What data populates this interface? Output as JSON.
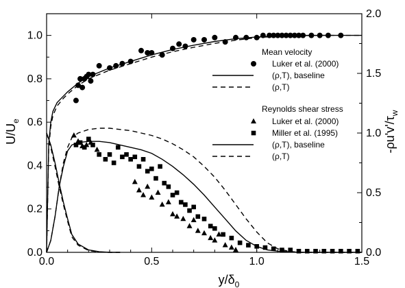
{
  "chart_data": {
    "type": "scatter",
    "xlabel": "y/δ",
    "xlabel_sub": "0",
    "ylabel_left": "U/U",
    "ylabel_left_sub": "e",
    "ylabel_right": "-ρu'v'/τ",
    "ylabel_right_sub": "w",
    "xlim": [
      0,
      1.5
    ],
    "ylim_left": [
      0,
      1.1
    ],
    "ylim_right": [
      0,
      2.0
    ],
    "xticks": [
      "0.0",
      "0.5",
      "1.0",
      "1.5"
    ],
    "yticks_left": [
      "0.0",
      "0.2",
      "0.4",
      "0.6",
      "0.8",
      "1.0"
    ],
    "yticks_right": [
      "0.0",
      "0.5",
      "1.0",
      "1.5",
      "2.0"
    ],
    "legend": {
      "velocity_title": "Mean velocity",
      "velocity_entries": [
        "Luker et al. (2000)",
        "(ρ,T), baseline",
        "(ρ,T)"
      ],
      "stress_title": "Reynolds shear stress",
      "stress_entries": [
        "Luker et al. (2000)",
        "Miller et al. (1995)",
        "(ρ,T), baseline",
        "(ρ,T)"
      ]
    },
    "series": [
      {
        "name": "Luker et al. (2000)",
        "group": "velocity",
        "kind": "scatter",
        "marker": "circle",
        "axis": "left",
        "x": [
          0.14,
          0.15,
          0.16,
          0.17,
          0.18,
          0.19,
          0.2,
          0.21,
          0.22,
          0.25,
          0.3,
          0.33,
          0.36,
          0.4,
          0.45,
          0.48,
          0.5,
          0.55,
          0.6,
          0.63,
          0.66,
          0.7,
          0.75,
          0.8,
          0.85,
          0.9,
          0.95,
          1.0,
          1.03,
          1.06,
          1.08,
          1.1,
          1.12,
          1.14,
          1.16,
          1.18,
          1.2,
          1.22,
          1.26,
          1.3,
          1.34,
          1.4
        ],
        "y": [
          0.7,
          0.77,
          0.8,
          0.76,
          0.8,
          0.81,
          0.82,
          0.79,
          0.82,
          0.86,
          0.85,
          0.86,
          0.87,
          0.88,
          0.93,
          0.92,
          0.92,
          0.91,
          0.94,
          0.96,
          0.95,
          0.98,
          0.98,
          0.99,
          0.97,
          0.99,
          0.99,
          0.99,
          1.0,
          1.0,
          1.0,
          1.0,
          1.0,
          1.0,
          1.0,
          1.0,
          1.0,
          1.0,
          1.0,
          1.0,
          1.0,
          1.0
        ]
      },
      {
        "name": "(ρ,T), baseline",
        "group": "velocity",
        "kind": "line",
        "dash": "solid",
        "axis": "left",
        "x": [
          0,
          0.01,
          0.02,
          0.03,
          0.05,
          0.08,
          0.1,
          0.15,
          0.2,
          0.3,
          0.4,
          0.5,
          0.6,
          0.7,
          0.8,
          0.9,
          1.0,
          1.1,
          1.2,
          1.3,
          1.4,
          1.5
        ],
        "y": [
          0,
          0.5,
          0.6,
          0.65,
          0.69,
          0.72,
          0.74,
          0.78,
          0.81,
          0.85,
          0.88,
          0.91,
          0.935,
          0.955,
          0.972,
          0.985,
          0.993,
          0.998,
          1.0,
          1.0,
          1.0,
          1.0
        ]
      },
      {
        "name": "(ρ,T)",
        "group": "velocity",
        "kind": "line",
        "dash": "dashed",
        "axis": "left",
        "x": [
          0,
          0.01,
          0.02,
          0.03,
          0.05,
          0.08,
          0.1,
          0.15,
          0.2,
          0.3,
          0.4,
          0.5,
          0.6,
          0.7,
          0.8,
          0.9,
          1.0,
          1.1,
          1.2,
          1.3,
          1.4,
          1.5
        ],
        "y": [
          0,
          0.48,
          0.58,
          0.63,
          0.675,
          0.71,
          0.73,
          0.77,
          0.8,
          0.84,
          0.87,
          0.9,
          0.925,
          0.945,
          0.963,
          0.978,
          0.99,
          0.996,
          0.999,
          1.0,
          1.0,
          1.0
        ]
      },
      {
        "name": "Luker et al. (2000)",
        "group": "stress",
        "kind": "scatter",
        "marker": "triangle",
        "axis": "right",
        "x": [
          0.13,
          0.15,
          0.17,
          0.19,
          0.21,
          0.24,
          0.42,
          0.44,
          0.46,
          0.48,
          0.5,
          0.53,
          0.55,
          0.58,
          0.6,
          0.62,
          0.65,
          0.68,
          0.7,
          0.72,
          0.75,
          0.78,
          0.8,
          0.82,
          0.85,
          0.88,
          0.9
        ],
        "y": [
          0.98,
          0.93,
          0.89,
          0.9,
          0.92,
          0.86,
          0.59,
          0.52,
          0.48,
          0.55,
          0.46,
          0.5,
          0.4,
          0.42,
          0.32,
          0.3,
          0.28,
          0.22,
          0.27,
          0.18,
          0.16,
          0.12,
          0.1,
          0.15,
          0.06,
          0.04,
          0.02
        ]
      },
      {
        "name": "Miller et al. (1995)",
        "group": "stress",
        "kind": "scatter",
        "marker": "square",
        "axis": "right",
        "x": [
          0.14,
          0.16,
          0.18,
          0.2,
          0.22,
          0.25,
          0.28,
          0.3,
          0.32,
          0.34,
          0.36,
          0.38,
          0.4,
          0.42,
          0.44,
          0.46,
          0.48,
          0.5,
          0.52,
          0.54,
          0.56,
          0.58,
          0.6,
          0.62,
          0.64,
          0.66,
          0.68,
          0.7,
          0.72,
          0.75,
          0.78,
          0.8,
          0.84,
          0.88,
          0.92,
          0.96,
          1.0,
          1.04,
          1.08,
          1.12,
          1.16,
          1.2,
          1.24,
          1.28,
          1.32,
          1.36,
          1.4,
          1.44,
          1.48
        ],
        "y": [
          0.9,
          0.92,
          0.88,
          0.95,
          0.9,
          0.82,
          0.78,
          0.82,
          0.75,
          0.88,
          0.8,
          0.82,
          0.78,
          0.8,
          0.72,
          0.78,
          0.68,
          0.7,
          0.62,
          0.72,
          0.58,
          0.55,
          0.48,
          0.5,
          0.42,
          0.4,
          0.35,
          0.38,
          0.3,
          0.28,
          0.22,
          0.2,
          0.15,
          0.12,
          0.08,
          0.06,
          0.05,
          0.04,
          0.03,
          0.02,
          0.02,
          0.01,
          0.01,
          0.01,
          0.01,
          0.01,
          0.01,
          0.01,
          0.01
        ]
      },
      {
        "name": "(ρ,T), baseline",
        "group": "stress",
        "kind": "line",
        "dash": "solid",
        "axis": "right",
        "x": [
          0,
          0.02,
          0.04,
          0.06,
          0.08,
          0.1,
          0.12,
          0.15,
          0.2,
          0.25,
          0.3,
          0.35,
          0.4,
          0.45,
          0.5,
          0.55,
          0.6,
          0.65,
          0.7,
          0.75,
          0.8,
          0.85,
          0.9,
          0.95,
          1.0,
          1.05,
          1.1,
          1.15,
          1.2,
          1.3,
          1.4,
          1.5
        ],
        "y": [
          0,
          0.1,
          0.3,
          0.55,
          0.72,
          0.85,
          0.9,
          0.92,
          0.93,
          0.93,
          0.92,
          0.9,
          0.88,
          0.86,
          0.83,
          0.78,
          0.72,
          0.65,
          0.57,
          0.48,
          0.38,
          0.28,
          0.18,
          0.1,
          0.05,
          0.02,
          0.01,
          0.005,
          0,
          0,
          0,
          0
        ]
      },
      {
        "name": "(ρ,T)",
        "group": "stress",
        "kind": "line",
        "dash": "dashed",
        "axis": "right",
        "x": [
          0,
          0.02,
          0.04,
          0.06,
          0.08,
          0.1,
          0.12,
          0.15,
          0.2,
          0.25,
          0.3,
          0.35,
          0.4,
          0.45,
          0.5,
          0.55,
          0.6,
          0.65,
          0.7,
          0.75,
          0.8,
          0.85,
          0.9,
          0.95,
          1.0,
          1.05,
          1.1,
          1.15,
          1.2,
          1.3,
          1.4,
          1.5
        ],
        "y": [
          0,
          0.1,
          0.3,
          0.55,
          0.75,
          0.88,
          0.96,
          1.0,
          1.03,
          1.04,
          1.04,
          1.03,
          1.02,
          1.0,
          0.98,
          0.95,
          0.91,
          0.86,
          0.8,
          0.72,
          0.63,
          0.52,
          0.4,
          0.28,
          0.17,
          0.08,
          0.03,
          0.01,
          0,
          0,
          0,
          0
        ]
      },
      {
        "name": "",
        "group": "wall",
        "kind": "line",
        "dash": "solid",
        "axis": "right",
        "x": [
          0,
          0.02,
          0.04,
          0.06,
          0.08,
          0.1,
          0.12,
          0.15,
          0.2,
          0.25,
          0.3,
          0.35
        ],
        "y": [
          1.0,
          0.9,
          0.75,
          0.58,
          0.42,
          0.28,
          0.15,
          0.07,
          0.02,
          0.005,
          0,
          0
        ]
      },
      {
        "name": "",
        "group": "wall",
        "kind": "line",
        "dash": "dashed",
        "axis": "right",
        "x": [
          0,
          0.02,
          0.04,
          0.06,
          0.08,
          0.1,
          0.12,
          0.15,
          0.2,
          0.25,
          0.3,
          0.35
        ],
        "y": [
          1.0,
          0.88,
          0.72,
          0.55,
          0.4,
          0.26,
          0.13,
          0.06,
          0.015,
          0.003,
          0,
          0
        ]
      }
    ]
  }
}
